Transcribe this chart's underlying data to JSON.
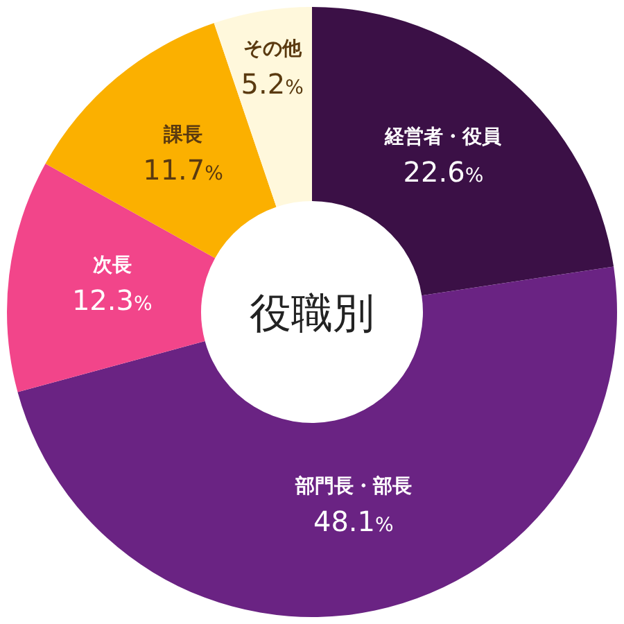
{
  "chart_data": {
    "type": "donut",
    "title": "役職別",
    "categories": [
      "経営者・役員",
      "部門長・部長",
      "次長",
      "課長",
      "その他"
    ],
    "values": [
      22.6,
      48.1,
      12.3,
      11.7,
      5.2
    ],
    "colors": [
      "#3b1046",
      "#6a2383",
      "#f2458a",
      "#fbb000",
      "#fff8dc"
    ],
    "value_labels": [
      "22.6%",
      "48.1%",
      "12.3%",
      "11.7%",
      "5.2%"
    ],
    "legend": false
  }
}
